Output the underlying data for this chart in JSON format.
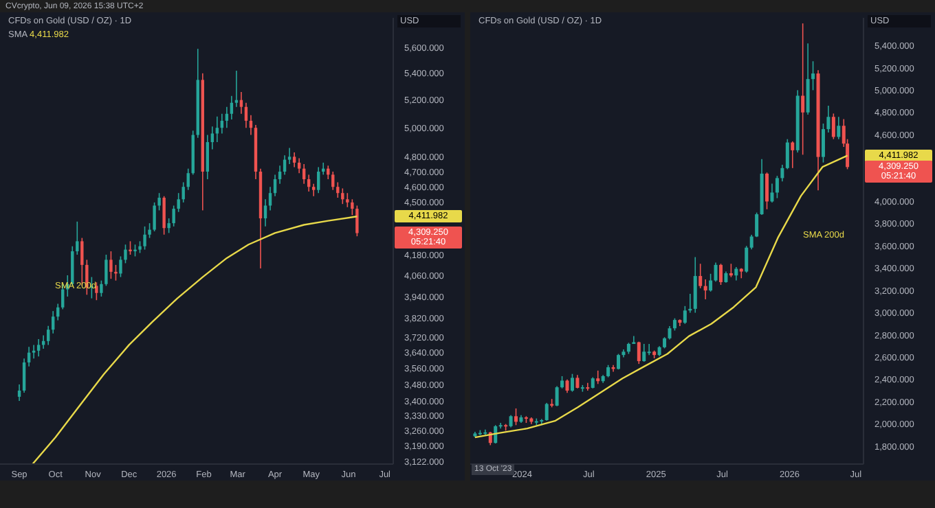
{
  "chart_data": [
    {
      "type": "candlestick",
      "title": "CFDs on Gold (USD / OZ) · 1D",
      "subtitle": "CVcrypto, Jun 09, 2026 15:38 UTC+2",
      "ylabel": "USD",
      "log": true,
      "legend": "top left",
      "x": [
        "2025-09-01",
        "2025-09-05",
        "2025-09-09",
        "2025-09-13",
        "2025-09-17",
        "2025-09-21",
        "2025-09-25",
        "2025-09-29",
        "2025-10-03",
        "2025-10-07",
        "2025-10-11",
        "2025-10-15",
        "2025-10-19",
        "2025-10-23",
        "2025-10-27",
        "2025-10-31",
        "2025-11-04",
        "2025-11-08",
        "2025-11-12",
        "2025-11-16",
        "2025-11-20",
        "2025-11-24",
        "2025-11-28",
        "2025-12-02",
        "2025-12-06",
        "2025-12-10",
        "2025-12-14",
        "2025-12-18",
        "2025-12-22",
        "2025-12-26",
        "2025-12-30",
        "2026-01-03",
        "2026-01-07",
        "2026-01-11",
        "2026-01-15",
        "2026-01-19",
        "2026-01-23",
        "2026-01-27",
        "2026-01-31",
        "2026-02-04",
        "2026-02-08",
        "2026-02-12",
        "2026-02-16",
        "2026-02-20",
        "2026-02-24",
        "2026-02-28",
        "2026-03-04",
        "2026-03-08",
        "2026-03-12",
        "2026-03-16",
        "2026-03-20",
        "2026-03-24",
        "2026-03-28",
        "2026-04-01",
        "2026-04-05",
        "2026-04-09",
        "2026-04-13",
        "2026-04-17",
        "2026-04-21",
        "2026-04-25",
        "2026-04-29",
        "2026-05-03",
        "2026-05-07",
        "2026-05-11",
        "2026-05-15",
        "2026-05-19",
        "2026-05-23",
        "2026-05-27",
        "2026-05-31",
        "2026-06-04",
        "2026-06-08"
      ],
      "ohlc": [
        [
          3420,
          3480,
          3400,
          3450
        ],
        [
          3450,
          3610,
          3440,
          3590
        ],
        [
          3590,
          3670,
          3570,
          3640
        ],
        [
          3640,
          3680,
          3610,
          3650
        ],
        [
          3650,
          3710,
          3620,
          3680
        ],
        [
          3680,
          3730,
          3660,
          3700
        ],
        [
          3700,
          3780,
          3680,
          3760
        ],
        [
          3760,
          3860,
          3740,
          3830
        ],
        [
          3830,
          3900,
          3810,
          3880
        ],
        [
          3880,
          4010,
          3870,
          3980
        ],
        [
          3980,
          4060,
          3940,
          4010
        ],
        [
          4010,
          4230,
          4000,
          4200
        ],
        [
          4200,
          4380,
          4180,
          4260
        ],
        [
          4260,
          4280,
          4000,
          4120
        ],
        [
          4120,
          4150,
          3950,
          3990
        ],
        [
          3990,
          4050,
          3930,
          4000
        ],
        [
          4000,
          4020,
          3920,
          3960
        ],
        [
          3960,
          4030,
          3940,
          4010
        ],
        [
          4010,
          4180,
          4000,
          4150
        ],
        [
          4150,
          4200,
          4040,
          4080
        ],
        [
          4080,
          4120,
          4030,
          4070
        ],
        [
          4070,
          4170,
          4050,
          4150
        ],
        [
          4150,
          4240,
          4130,
          4210
        ],
        [
          4210,
          4260,
          4180,
          4200
        ],
        [
          4200,
          4240,
          4170,
          4210
        ],
        [
          4210,
          4260,
          4190,
          4230
        ],
        [
          4230,
          4350,
          4210,
          4300
        ],
        [
          4300,
          4370,
          4280,
          4330
        ],
        [
          4330,
          4500,
          4320,
          4480
        ],
        [
          4480,
          4560,
          4450,
          4530
        ],
        [
          4530,
          4540,
          4300,
          4340
        ],
        [
          4340,
          4400,
          4310,
          4370
        ],
        [
          4370,
          4480,
          4350,
          4460
        ],
        [
          4460,
          4560,
          4440,
          4520
        ],
        [
          4520,
          4630,
          4500,
          4600
        ],
        [
          4600,
          4720,
          4580,
          4690
        ],
        [
          4690,
          4980,
          4680,
          4950
        ],
        [
          4950,
          5590,
          4930,
          5350
        ],
        [
          5350,
          5400,
          4450,
          4700
        ],
        [
          4700,
          4950,
          4650,
          4900
        ],
        [
          4900,
          5010,
          4850,
          4960
        ],
        [
          4960,
          5080,
          4900,
          5000
        ],
        [
          5000,
          5100,
          4960,
          5050
        ],
        [
          5050,
          5150,
          5000,
          5100
        ],
        [
          5100,
          5230,
          5060,
          5180
        ],
        [
          5180,
          5420,
          5150,
          5200
        ],
        [
          5200,
          5260,
          5100,
          5150
        ],
        [
          5150,
          5180,
          5000,
          5050
        ],
        [
          5050,
          5090,
          4950,
          5000
        ],
        [
          5000,
          5020,
          4650,
          4700
        ],
        [
          4700,
          4720,
          4100,
          4400
        ],
        [
          4400,
          4520,
          4350,
          4480
        ],
        [
          4480,
          4600,
          4450,
          4560
        ],
        [
          4560,
          4680,
          4540,
          4650
        ],
        [
          4650,
          4740,
          4620,
          4700
        ],
        [
          4700,
          4810,
          4680,
          4780
        ],
        [
          4780,
          4860,
          4750,
          4800
        ],
        [
          4800,
          4830,
          4730,
          4760
        ],
        [
          4760,
          4790,
          4690,
          4720
        ],
        [
          4720,
          4750,
          4620,
          4650
        ],
        [
          4650,
          4680,
          4570,
          4600
        ],
        [
          4600,
          4620,
          4540,
          4580
        ],
        [
          4580,
          4730,
          4560,
          4700
        ],
        [
          4700,
          4760,
          4680,
          4720
        ],
        [
          4720,
          4740,
          4650,
          4680
        ],
        [
          4680,
          4700,
          4580,
          4600
        ],
        [
          4600,
          4630,
          4530,
          4560
        ],
        [
          4560,
          4590,
          4490,
          4520
        ],
        [
          4520,
          4560,
          4470,
          4500
        ],
        [
          4500,
          4520,
          4420,
          4460
        ],
        [
          4460,
          4480,
          4290,
          4309.25
        ]
      ],
      "series": [
        {
          "name": "SMA",
          "type": "line",
          "color": "#e8d94a",
          "x": [
            "2025-09-12",
            "2025-10-01",
            "2025-10-20",
            "2025-11-10",
            "2025-12-01",
            "2025-12-20",
            "2026-01-10",
            "2026-01-31",
            "2026-02-20",
            "2026-03-10",
            "2026-04-01",
            "2026-04-25",
            "2026-05-15",
            "2026-06-08"
          ],
          "values": [
            3110,
            3230,
            3370,
            3530,
            3680,
            3800,
            3930,
            4050,
            4160,
            4240,
            4310,
            4360,
            4385,
            4411.982
          ]
        }
      ],
      "xlim": [
        "2025-08-16",
        "2026-07-08"
      ],
      "xticks": [
        {
          "value": "2025-09-01",
          "label": "Sep"
        },
        {
          "value": "2025-10-01",
          "label": "Oct"
        },
        {
          "value": "2025-11-01",
          "label": "Nov"
        },
        {
          "value": "2025-12-01",
          "label": "Dec"
        },
        {
          "value": "2026-01-01",
          "label": "2026"
        },
        {
          "value": "2026-02-01",
          "label": "Feb"
        },
        {
          "value": "2026-03-01",
          "label": "Mar"
        },
        {
          "value": "2026-04-01",
          "label": "Apr"
        },
        {
          "value": "2026-05-01",
          "label": "May"
        },
        {
          "value": "2026-06-01",
          "label": "Jun"
        },
        {
          "value": "2026-07-01",
          "label": "Jul"
        }
      ],
      "ylim": [
        3110,
        5840
      ],
      "yticks": [
        {
          "value": 5600,
          "label": "5,600.000"
        },
        {
          "value": 5400,
          "label": "5,400.000"
        },
        {
          "value": 5200,
          "label": "5,200.000"
        },
        {
          "value": 5000,
          "label": "5,000.000"
        },
        {
          "value": 4800,
          "label": "4,800.000"
        },
        {
          "value": 4700,
          "label": "4,700.000"
        },
        {
          "value": 4600,
          "label": "4,600.000"
        },
        {
          "value": 4500,
          "label": "4,500.000"
        },
        {
          "value": 4180,
          "label": "4,180.000"
        },
        {
          "value": 4060,
          "label": "4,060.000"
        },
        {
          "value": 3940,
          "label": "3,940.000"
        },
        {
          "value": 3820,
          "label": "3,820.000"
        },
        {
          "value": 3720,
          "label": "3,720.000"
        },
        {
          "value": 3640,
          "label": "3,640.000"
        },
        {
          "value": 3560,
          "label": "3,560.000"
        },
        {
          "value": 3480,
          "label": "3,480.000"
        },
        {
          "value": 3400,
          "label": "3,400.000"
        },
        {
          "value": 3330,
          "label": "3,330.000"
        },
        {
          "value": 3260,
          "label": "3,260.000"
        },
        {
          "value": 3190,
          "label": "3,190.000"
        },
        {
          "value": 3122,
          "label": "3,122.000"
        }
      ],
      "annotations": [
        "05:21:40",
        "SMA 200d",
        "4,411.982",
        "4,309.250"
      ]
    },
    {
      "type": "candlestick",
      "title": "CFDs on Gold (USD / OZ) · 1D",
      "ylabel": "USD",
      "x": [
        "2023-08-25",
        "2023-09-08",
        "2023-09-22",
        "2023-10-06",
        "2023-10-20",
        "2023-11-03",
        "2023-11-17",
        "2023-12-01",
        "2023-12-15",
        "2023-12-29",
        "2024-01-12",
        "2024-01-26",
        "2024-02-09",
        "2024-02-23",
        "2024-03-08",
        "2024-03-22",
        "2024-04-05",
        "2024-04-19",
        "2024-05-03",
        "2024-05-17",
        "2024-05-31",
        "2024-06-14",
        "2024-06-28",
        "2024-07-12",
        "2024-07-26",
        "2024-08-09",
        "2024-08-23",
        "2024-09-06",
        "2024-09-20",
        "2024-10-04",
        "2024-10-18",
        "2024-11-01",
        "2024-11-15",
        "2024-11-29",
        "2024-12-13",
        "2024-12-27",
        "2025-01-10",
        "2025-01-24",
        "2025-02-07",
        "2025-02-21",
        "2025-03-07",
        "2025-03-21",
        "2025-04-04",
        "2025-04-18",
        "2025-05-02",
        "2025-05-16",
        "2025-05-30",
        "2025-06-13",
        "2025-06-27",
        "2025-07-11",
        "2025-07-25",
        "2025-08-08",
        "2025-08-22",
        "2025-09-05",
        "2025-09-19",
        "2025-10-03",
        "2025-10-17",
        "2025-10-31",
        "2025-11-14",
        "2025-11-28",
        "2025-12-12",
        "2025-12-26",
        "2026-01-09",
        "2026-01-23",
        "2026-02-06",
        "2026-02-20",
        "2026-03-06",
        "2026-03-20",
        "2026-04-03",
        "2026-04-17",
        "2026-05-01",
        "2026-05-15",
        "2026-05-29",
        "2026-06-08"
      ],
      "ohlc": [
        [
          1890,
          1930,
          1880,
          1915
        ],
        [
          1915,
          1945,
          1900,
          1920
        ],
        [
          1920,
          1950,
          1900,
          1925
        ],
        [
          1925,
          1930,
          1810,
          1830
        ],
        [
          1830,
          1990,
          1825,
          1980
        ],
        [
          1980,
          2010,
          1960,
          1990
        ],
        [
          1990,
          2000,
          1940,
          1980
        ],
        [
          1980,
          2080,
          1970,
          2070
        ],
        [
          2070,
          2140,
          1990,
          2020
        ],
        [
          2020,
          2080,
          2010,
          2060
        ],
        [
          2060,
          2070,
          2010,
          2050
        ],
        [
          2050,
          2060,
          2000,
          2020
        ],
        [
          2020,
          2050,
          1990,
          2025
        ],
        [
          2025,
          2045,
          1990,
          2035
        ],
        [
          2035,
          2190,
          2030,
          2180
        ],
        [
          2180,
          2225,
          2150,
          2165
        ],
        [
          2165,
          2340,
          2160,
          2330
        ],
        [
          2330,
          2430,
          2320,
          2390
        ],
        [
          2390,
          2400,
          2280,
          2300
        ],
        [
          2300,
          2450,
          2290,
          2415
        ],
        [
          2415,
          2440,
          2320,
          2325
        ],
        [
          2325,
          2350,
          2290,
          2330
        ],
        [
          2330,
          2370,
          2300,
          2325
        ],
        [
          2325,
          2420,
          2320,
          2410
        ],
        [
          2410,
          2480,
          2360,
          2385
        ],
        [
          2385,
          2440,
          2370,
          2430
        ],
        [
          2430,
          2530,
          2420,
          2510
        ],
        [
          2510,
          2530,
          2470,
          2495
        ],
        [
          2495,
          2630,
          2490,
          2620
        ],
        [
          2620,
          2670,
          2600,
          2650
        ],
        [
          2650,
          2730,
          2630,
          2720
        ],
        [
          2720,
          2790,
          2720,
          2735
        ],
        [
          2735,
          2740,
          2540,
          2565
        ],
        [
          2565,
          2720,
          2560,
          2650
        ],
        [
          2650,
          2720,
          2620,
          2650
        ],
        [
          2650,
          2660,
          2590,
          2620
        ],
        [
          2620,
          2700,
          2610,
          2690
        ],
        [
          2690,
          2780,
          2680,
          2770
        ],
        [
          2770,
          2880,
          2760,
          2860
        ],
        [
          2860,
          2950,
          2840,
          2935
        ],
        [
          2935,
          2940,
          2880,
          2910
        ],
        [
          2910,
          3060,
          2900,
          3020
        ],
        [
          3020,
          3170,
          3000,
          3035
        ],
        [
          3035,
          3500,
          3000,
          3330
        ],
        [
          3330,
          3440,
          3220,
          3240
        ],
        [
          3240,
          3300,
          3120,
          3200
        ],
        [
          3200,
          3350,
          3190,
          3290
        ],
        [
          3290,
          3450,
          3280,
          3430
        ],
        [
          3430,
          3440,
          3250,
          3275
        ],
        [
          3275,
          3370,
          3270,
          3355
        ],
        [
          3355,
          3440,
          3320,
          3335
        ],
        [
          3335,
          3410,
          3290,
          3395
        ],
        [
          3395,
          3400,
          3310,
          3370
        ],
        [
          3370,
          3600,
          3360,
          3585
        ],
        [
          3585,
          3700,
          3570,
          3685
        ],
        [
          3685,
          3900,
          3680,
          3885
        ],
        [
          3885,
          4380,
          3880,
          4250
        ],
        [
          4250,
          4260,
          3930,
          4000
        ],
        [
          4000,
          4160,
          3990,
          4080
        ],
        [
          4080,
          4230,
          4030,
          4210
        ],
        [
          4210,
          4330,
          4180,
          4300
        ],
        [
          4300,
          4560,
          4290,
          4530
        ],
        [
          4530,
          4540,
          4300,
          4460
        ],
        [
          4460,
          5000,
          4440,
          4950
        ],
        [
          4950,
          5600,
          4420,
          4800
        ],
        [
          4800,
          5420,
          4780,
          5100
        ],
        [
          5100,
          5260,
          5000,
          5150
        ],
        [
          5150,
          5180,
          4100,
          4400
        ],
        [
          4400,
          4700,
          4350,
          4650
        ],
        [
          4650,
          4860,
          4620,
          4760
        ],
        [
          4760,
          4790,
          4560,
          4580
        ],
        [
          4580,
          4760,
          4560,
          4680
        ],
        [
          4680,
          4740,
          4490,
          4520
        ],
        [
          4520,
          4560,
          4290,
          4309.25
        ]
      ],
      "series": [
        {
          "type": "line",
          "color": "#e8d94a",
          "x": [
            "2023-08-25",
            "2023-11-01",
            "2024-01-15",
            "2024-04-01",
            "2024-06-01",
            "2024-08-01",
            "2024-10-01",
            "2024-12-01",
            "2025-02-01",
            "2025-04-01",
            "2025-06-01",
            "2025-08-01",
            "2025-10-01",
            "2025-12-01",
            "2026-02-01",
            "2026-04-01",
            "2026-06-08"
          ],
          "values": [
            1880,
            1920,
            1960,
            2030,
            2150,
            2280,
            2410,
            2520,
            2630,
            2790,
            2900,
            3050,
            3230,
            3680,
            4050,
            4310,
            4411.982
          ]
        }
      ],
      "xlim": [
        "2023-08-12",
        "2026-07-22"
      ],
      "xticks": [
        {
          "value": "2024-01-01",
          "label": "2024"
        },
        {
          "value": "2024-07-01",
          "label": "Jul"
        },
        {
          "value": "2025-01-01",
          "label": "2025"
        },
        {
          "value": "2025-07-01",
          "label": "Jul"
        },
        {
          "value": "2026-01-01",
          "label": "2026"
        },
        {
          "value": "2026-07-01",
          "label": "Jul"
        }
      ],
      "ylim": [
        1640,
        5650
      ],
      "yticks": [
        {
          "value": 5400,
          "label": "5,400.000"
        },
        {
          "value": 5200,
          "label": "5,200.000"
        },
        {
          "value": 5000,
          "label": "5,000.000"
        },
        {
          "value": 4800,
          "label": "4,800.000"
        },
        {
          "value": 4600,
          "label": "4,600.000"
        },
        {
          "value": 4000,
          "label": "4,000.000"
        },
        {
          "value": 3800,
          "label": "3,800.000"
        },
        {
          "value": 3600,
          "label": "3,600.000"
        },
        {
          "value": 3400,
          "label": "3,400.000"
        },
        {
          "value": 3200,
          "label": "3,200.000"
        },
        {
          "value": 3000,
          "label": "3,000.000"
        },
        {
          "value": 2800,
          "label": "2,800.000"
        },
        {
          "value": 2600,
          "label": "2,600.000"
        },
        {
          "value": 2400,
          "label": "2,400.000"
        },
        {
          "value": 2200,
          "label": "2,200.000"
        },
        {
          "value": 2000,
          "label": "2,000.000"
        },
        {
          "value": 1800,
          "label": "1,800.000"
        }
      ],
      "annotations": [
        "05:21:40",
        "SMA 200d",
        "13 Oct '23",
        "4,411.982",
        "4,309.250"
      ]
    }
  ]
}
